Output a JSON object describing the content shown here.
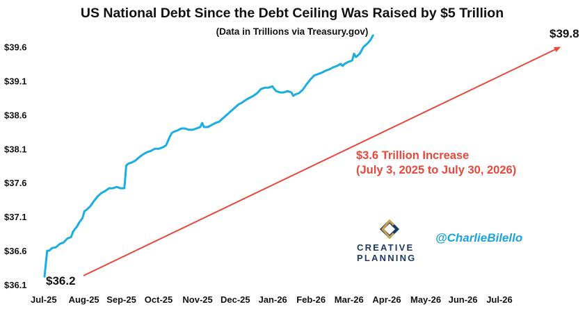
{
  "chart_data": {
    "type": "line",
    "title": "US National Debt Since the Debt Ceiling Was Raised by $5 Trillion",
    "subtitle": "(Data in Trillions via Treasury.gov)",
    "xlabel": "",
    "ylabel": "",
    "ylim": [
      36.1,
      39.8
    ],
    "yticks": [
      {
        "value": 36.1,
        "label": "$36.1"
      },
      {
        "value": 36.6,
        "label": "$36.6"
      },
      {
        "value": 37.1,
        "label": "$37.1"
      },
      {
        "value": 37.6,
        "label": "$37.6"
      },
      {
        "value": 38.1,
        "label": "$38.1"
      },
      {
        "value": 38.6,
        "label": "$38.6"
      },
      {
        "value": 39.1,
        "label": "$39.1"
      },
      {
        "value": 39.6,
        "label": "$39.6"
      }
    ],
    "xticks": [
      "Jul-25",
      "Aug-25",
      "Sep-25",
      "Oct-25",
      "Nov-25",
      "Dec-25",
      "Jan-26",
      "Feb-26",
      "Mar-26",
      "Apr-26",
      "May-26",
      "Jun-26",
      "Jul-26"
    ],
    "grid": false,
    "series": [
      {
        "color": "#1aade3",
        "values": [
          [
            0.0,
            36.22
          ],
          [
            0.07,
            36.6
          ],
          [
            0.12,
            36.6
          ],
          [
            0.2,
            36.64
          ],
          [
            0.3,
            36.65
          ],
          [
            0.4,
            36.7
          ],
          [
            0.5,
            36.72
          ],
          [
            0.6,
            36.78
          ],
          [
            0.7,
            36.8
          ],
          [
            0.75,
            36.88
          ],
          [
            0.8,
            36.92
          ],
          [
            0.85,
            36.95
          ],
          [
            0.92,
            37.02
          ],
          [
            1.0,
            37.08
          ],
          [
            1.05,
            37.18
          ],
          [
            1.1,
            37.2
          ],
          [
            1.2,
            37.25
          ],
          [
            1.3,
            37.33
          ],
          [
            1.4,
            37.4
          ],
          [
            1.5,
            37.45
          ],
          [
            1.6,
            37.48
          ],
          [
            1.7,
            37.52
          ],
          [
            1.8,
            37.52
          ],
          [
            1.9,
            37.54
          ],
          [
            2.0,
            37.52
          ],
          [
            2.1,
            37.52
          ],
          [
            2.13,
            37.7
          ],
          [
            2.15,
            37.85
          ],
          [
            2.2,
            37.88
          ],
          [
            2.3,
            37.9
          ],
          [
            2.4,
            37.93
          ],
          [
            2.5,
            37.98
          ],
          [
            2.6,
            38.02
          ],
          [
            2.7,
            38.05
          ],
          [
            2.8,
            38.07
          ],
          [
            2.9,
            38.1
          ],
          [
            3.0,
            38.1
          ],
          [
            3.1,
            38.12
          ],
          [
            3.2,
            38.15
          ],
          [
            3.3,
            38.28
          ],
          [
            3.35,
            38.33
          ],
          [
            3.4,
            38.35
          ],
          [
            3.5,
            38.37
          ],
          [
            3.6,
            38.4
          ],
          [
            3.7,
            38.4
          ],
          [
            3.8,
            38.38
          ],
          [
            3.9,
            38.38
          ],
          [
            4.0,
            38.4
          ],
          [
            4.1,
            38.42
          ],
          [
            4.15,
            38.48
          ],
          [
            4.2,
            38.42
          ],
          [
            4.3,
            38.42
          ],
          [
            4.4,
            38.45
          ],
          [
            4.5,
            38.48
          ],
          [
            4.6,
            38.5
          ],
          [
            4.7,
            38.55
          ],
          [
            4.8,
            38.6
          ],
          [
            4.9,
            38.65
          ],
          [
            5.0,
            38.7
          ],
          [
            5.1,
            38.75
          ],
          [
            5.2,
            38.78
          ],
          [
            5.3,
            38.82
          ],
          [
            5.4,
            38.85
          ],
          [
            5.5,
            38.88
          ],
          [
            5.6,
            38.92
          ],
          [
            5.7,
            38.98
          ],
          [
            5.8,
            39.0
          ],
          [
            5.9,
            39.0
          ],
          [
            6.0,
            39.02
          ],
          [
            6.05,
            38.98
          ],
          [
            6.1,
            38.95
          ],
          [
            6.2,
            38.93
          ],
          [
            6.3,
            38.93
          ],
          [
            6.4,
            38.95
          ],
          [
            6.5,
            38.93
          ],
          [
            6.55,
            38.88
          ],
          [
            6.6,
            38.9
          ],
          [
            6.7,
            38.92
          ],
          [
            6.8,
            38.97
          ],
          [
            6.9,
            39.05
          ],
          [
            7.0,
            39.12
          ],
          [
            7.1,
            39.18
          ],
          [
            7.2,
            39.2
          ],
          [
            7.3,
            39.22
          ],
          [
            7.4,
            39.25
          ],
          [
            7.5,
            39.27
          ],
          [
            7.6,
            39.3
          ],
          [
            7.7,
            39.32
          ],
          [
            7.8,
            39.35
          ],
          [
            7.85,
            39.32
          ],
          [
            7.9,
            39.35
          ],
          [
            8.0,
            39.38
          ],
          [
            8.1,
            39.4
          ],
          [
            8.15,
            39.5
          ],
          [
            8.2,
            39.45
          ],
          [
            8.3,
            39.5
          ],
          [
            8.4,
            39.6
          ],
          [
            8.5,
            39.65
          ],
          [
            8.58,
            39.7
          ],
          [
            8.65,
            39.77
          ]
        ]
      }
    ],
    "annotations": {
      "start_label": "$36.2",
      "end_label": "$39.8",
      "arrow_text_line1": "$3.6 Trillion Increase",
      "arrow_text_line2": "(July 3, 2025 to July 30, 2026)",
      "arrow_color": "#e8483b"
    }
  },
  "branding": {
    "logo_word1": "CREATIVE",
    "logo_word2": "PLANNING",
    "handle": "@CharlieBilello"
  }
}
